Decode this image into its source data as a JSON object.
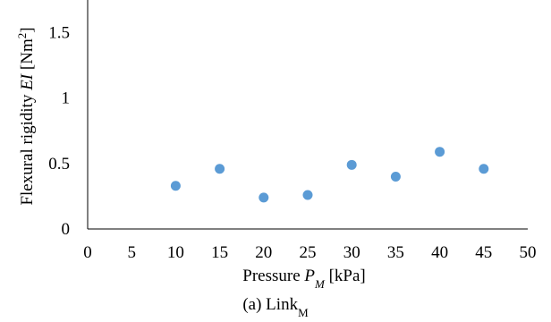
{
  "chart_data": {
    "type": "scatter",
    "x": [
      10,
      15,
      20,
      25,
      30,
      35,
      40,
      45
    ],
    "y": [
      0.33,
      0.46,
      0.24,
      0.26,
      0.49,
      0.4,
      0.59,
      0.46
    ],
    "xlim": [
      0,
      50
    ],
    "ylim": [
      0,
      1.75
    ],
    "xticks": [
      "0",
      "5",
      "10",
      "15",
      "20",
      "25",
      "30",
      "35",
      "40",
      "45",
      "50"
    ],
    "yticks": [
      "0",
      "0.5",
      "1",
      "1.5"
    ],
    "ylabel": {
      "prefix": "Flexural rigidity ",
      "symbol": "EI",
      "unit_open": " [Nm",
      "superscript": "2",
      "unit_close": "]"
    },
    "xlabel": {
      "prefix": "Pressure  ",
      "symbol": "P",
      "subscript": "M",
      "unit": " [kPa]"
    },
    "caption": {
      "text": "(a) Link",
      "subscript": "M"
    },
    "marker_color": "#5B9BD5",
    "axis_color": "#000000",
    "grid": false
  }
}
